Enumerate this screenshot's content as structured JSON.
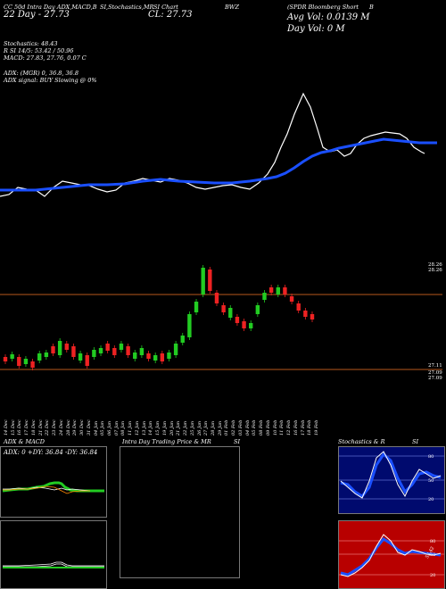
{
  "header": {
    "line1_left": "CC 50d Intra Day ADX,MACD,B",
    "line1_mid": "SI,Stochastics,MR",
    "line1_mid2": "SI Chart",
    "line1_sym": "BWZ",
    "line1_name": "(SPDR Bloomberg Short",
    "line1_right": "B",
    "line2_left": "22 Day - 27.73",
    "close_label": "CL: 27.73",
    "avg_vol": "Avg Vol: 0.0139 M",
    "day_vol": "Day Vol: 0   M",
    "stoch": "Stochastics: 48.43",
    "rsi": "R     SI 14/5: 53.42 / 50.96",
    "macd": "MACD: 27.83, 27.76, 0.07 C",
    "adx": "ADX:                   (MGR) 0, 36.8, 36.8",
    "adx_signal": "ADX  signal:                    BUY Slowing @ 0%"
  },
  "price_levels": {
    "top_right": "28.26",
    "top_right2": "28.26",
    "bottom_right": "27.11",
    "bottom_right2": "27.09",
    "bottom_right3": "27.09"
  },
  "dates": [
    "14 Dec",
    "15 Dec",
    "16 Dec",
    "17 Dec",
    "18 Dec",
    "21 Dec",
    "22 Dec",
    "23 Dec",
    "24 Dec",
    "28 Dec",
    "29 Dec",
    "30 Dec",
    "31 Dec",
    "04 Jan",
    "05 Jan",
    "06 Jan",
    "07 Jan",
    "08 Jan",
    "11 Jan",
    "12 Jan",
    "13 Jan",
    "14 Jan",
    "15 Jan",
    "19 Jan",
    "20 Jan",
    "21 Jan",
    "22 Jan",
    "25 Jan",
    "26 Jan",
    "27 Jan",
    "28 Jan",
    "29 Jan",
    "01 Feb",
    "02 Feb",
    "03 Feb",
    "04 Feb",
    "05 Feb",
    "08 Feb",
    "09 Feb",
    "10 Feb",
    "11 Feb",
    "12 Feb",
    "16 Feb",
    "17 Feb",
    "18 Feb",
    "19 Feb"
  ],
  "panels": {
    "adx_title": "ADX  & MACD",
    "adx_readout": "ADX: 0   +DY: 36.84   -DY: 36.84",
    "intraday_title": "Intra Day Trading Price  & MR",
    "intraday_title2": "SI",
    "stoch_title": "Stochastics & R",
    "stoch_title2": "SI",
    "stoch_ticks": [
      "80",
      "50",
      "20"
    ],
    "rsi_ticks": [
      "80",
      "50",
      "20"
    ],
    "rsi_value": "53.42"
  },
  "colors": {
    "bg": "#000000",
    "up": "#22cc22",
    "down": "#ee2222",
    "ma": "#1a4fff",
    "level": "#b8581c",
    "stoch_bg": "#000a6e",
    "rsi_bg": "#b80000"
  }
}
